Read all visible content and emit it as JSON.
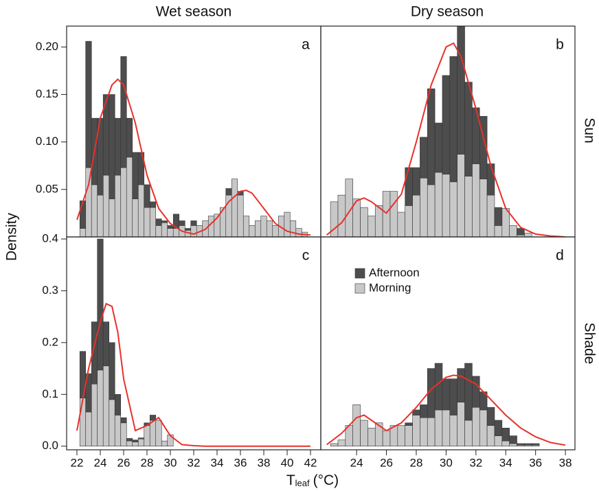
{
  "figure": {
    "column_titles": [
      "Wet season",
      "Dry season"
    ],
    "row_titles": [
      "Sun",
      "Shade"
    ],
    "ylabel": "Density",
    "xlabel": {
      "main": "T",
      "sub": "leaf",
      "unit": "(°C)"
    }
  },
  "chart_data": [
    {
      "type": "histogram",
      "panel_label": "a",
      "bins": [
        22.25,
        22.75,
        23.25,
        23.75,
        24.25,
        24.75,
        25.25,
        25.75,
        26.25,
        26.75,
        27.25,
        27.75,
        28.25,
        28.75,
        29.25,
        29.75,
        30.25,
        30.75,
        31.25,
        31.75,
        32.25,
        32.75,
        33.25,
        33.75,
        34.25,
        34.75,
        35.25,
        35.75,
        36.25,
        36.75,
        37.25,
        37.75,
        38.25,
        38.75,
        39.25,
        39.75,
        40.25,
        40.75,
        41.25,
        41.75
      ],
      "series": [
        {
          "name": "Morning",
          "color": "#c8c8c8",
          "values": [
            0.009,
            0.073,
            0.055,
            0.044,
            0.065,
            0.04,
            0.065,
            0.073,
            0.084,
            0.04,
            0.055,
            0.031,
            0.031,
            0.012,
            0.015,
            0.009,
            0.009,
            0.012,
            0.007,
            0.012,
            0.012,
            0.017,
            0.022,
            0.024,
            0.031,
            0.044,
            0.061,
            0.044,
            0.022,
            0.012,
            0.017,
            0.022,
            0.017,
            0.012,
            0.022,
            0.026,
            0.017,
            0.009,
            0.005
          ]
        },
        {
          "name": "Afternoon",
          "color": "#4d4d4d",
          "values": [
            0.029,
            0.133,
            0.07,
            0.081,
            0.085,
            0.11,
            0.06,
            0.117,
            0.041,
            0.049,
            0.034,
            0.024,
            0.006,
            0.007,
            0.002,
            0.003,
            0.015,
            0.005,
            0.002,
            0.005,
            0,
            0,
            0,
            0,
            0,
            0.007,
            0,
            0.004,
            0,
            0,
            0,
            0,
            0,
            0,
            0,
            0,
            0,
            0,
            0
          ]
        }
      ],
      "density": {
        "color": "#e8302a",
        "x": [
          22,
          23,
          24,
          25,
          25.5,
          26,
          27,
          28,
          29,
          30,
          31,
          32,
          33,
          34,
          35,
          36,
          36.5,
          37,
          38,
          39,
          40,
          41,
          42
        ],
        "values": [
          0.018,
          0.055,
          0.125,
          0.16,
          0.166,
          0.16,
          0.12,
          0.065,
          0.03,
          0.014,
          0.006,
          0.003,
          0.008,
          0.02,
          0.037,
          0.048,
          0.049,
          0.046,
          0.03,
          0.014,
          0.006,
          0.003,
          0.002
        ]
      },
      "xlim": [
        21.12,
        42.88
      ],
      "ylim": [
        0,
        0.222
      ],
      "yticks": [
        {
          "value": 0.05,
          "label": "0.05"
        },
        {
          "value": 0.1,
          "label": "0.10"
        },
        {
          "value": 0.15,
          "label": "0.15"
        },
        {
          "value": 0.2,
          "label": "0.20"
        }
      ]
    },
    {
      "type": "histogram",
      "panel_label": "b",
      "bins": [
        22.25,
        22.75,
        23.25,
        23.75,
        24.25,
        24.75,
        25.25,
        25.75,
        26.25,
        26.75,
        27.25,
        27.75,
        28.25,
        28.75,
        29.25,
        29.75,
        30.25,
        30.75,
        31.25,
        31.75,
        32.25,
        32.75,
        33.25,
        33.75,
        34.25,
        34.75,
        35.25,
        35.75
      ],
      "series": [
        {
          "name": "Morning",
          "color": "#c8c8c8",
          "values": [
            0.037,
            0.044,
            0.061,
            0.04,
            0.031,
            0.022,
            0.033,
            0.048,
            0.048,
            0.026,
            0.033,
            0.044,
            0.062,
            0.055,
            0.068,
            0.066,
            0.058,
            0.087,
            0.064,
            0.077,
            0.061,
            0.044,
            0.012,
            0.03,
            0.012,
            0.002,
            0.004
          ]
        },
        {
          "name": "Afternoon",
          "color": "#4d4d4d",
          "values": [
            0,
            0,
            0,
            0,
            0,
            0,
            0,
            0,
            0,
            0,
            0.04,
            0.029,
            0.043,
            0.101,
            0.052,
            0.104,
            0.132,
            0.143,
            0.099,
            0.059,
            0.066,
            0.033,
            0.019,
            0,
            0,
            0.007,
            0
          ]
        }
      ],
      "density": {
        "color": "#e8302a",
        "x": [
          22,
          23,
          24,
          24.5,
          25,
          26,
          27,
          28,
          29,
          30,
          30.5,
          31,
          32,
          33,
          34,
          35,
          36,
          37,
          38
        ],
        "values": [
          0.002,
          0.015,
          0.038,
          0.041,
          0.037,
          0.025,
          0.045,
          0.1,
          0.16,
          0.2,
          0.204,
          0.19,
          0.135,
          0.075,
          0.03,
          0.01,
          0.003,
          0.001,
          0
        ]
      },
      "xlim": [
        21.6,
        38.64
      ],
      "ylim": [
        0,
        0.222
      ]
    },
    {
      "type": "histogram",
      "panel_label": "c",
      "bins": [
        22.25,
        22.75,
        23.25,
        23.75,
        24.25,
        24.75,
        25.25,
        25.75,
        26.25,
        26.75,
        27.25,
        27.75,
        28.25,
        28.75,
        29.25,
        29.75,
        30.25
      ],
      "series": [
        {
          "name": "Morning",
          "color": "#c8c8c8",
          "values": [
            0.093,
            0.066,
            0.12,
            0.147,
            0.155,
            0.09,
            0.06,
            0.045,
            0.01,
            0.008,
            0.014,
            0.04,
            0.05,
            0.05,
            0.01,
            0.022
          ]
        },
        {
          "name": "Afternoon",
          "color": "#4d4d4d",
          "values": [
            0.09,
            0.074,
            0.12,
            0.253,
            0.085,
            0.11,
            0.04,
            0.01,
            0.005,
            0.004,
            0.002,
            0.005,
            0.01,
            0,
            0,
            0
          ]
        }
      ],
      "density": {
        "color": "#e8302a",
        "x": [
          22,
          23,
          24,
          24.5,
          25,
          25.5,
          26,
          27,
          28,
          29,
          30,
          31,
          32,
          33,
          42
        ],
        "values": [
          0.03,
          0.15,
          0.24,
          0.275,
          0.27,
          0.22,
          0.13,
          0.03,
          0.04,
          0.055,
          0.02,
          0.003,
          0.001,
          0,
          0
        ]
      },
      "xlim": [
        21.12,
        42.88
      ],
      "ylim": [
        -0.007,
        0.404
      ],
      "xticks": [
        22,
        24,
        26,
        28,
        30,
        32,
        34,
        36,
        38,
        40,
        42
      ],
      "yticks": [
        {
          "value": 0,
          "label": "0.0"
        },
        {
          "value": 0.1,
          "label": "0.1"
        },
        {
          "value": 0.2,
          "label": "0.2"
        },
        {
          "value": 0.3,
          "label": "0.3"
        },
        {
          "value": 0.4,
          "label": "0.4"
        }
      ]
    },
    {
      "type": "histogram",
      "panel_label": "d",
      "legend": "upper-left",
      "bins": [
        22.25,
        22.75,
        23.25,
        23.75,
        24.25,
        24.75,
        25.25,
        25.75,
        26.25,
        26.75,
        27.25,
        27.75,
        28.25,
        28.75,
        29.25,
        29.75,
        30.25,
        30.75,
        31.25,
        31.75,
        32.25,
        32.75,
        33.25,
        33.75,
        34.25,
        34.75,
        35.25,
        35.75,
        36.25
      ],
      "series": [
        {
          "name": "Morning",
          "color": "#c8c8c8",
          "values": [
            0.005,
            0.012,
            0.04,
            0.08,
            0.05,
            0.035,
            0.045,
            0.03,
            0.04,
            0.04,
            0.04,
            0.06,
            0.055,
            0.055,
            0.07,
            0.07,
            0.06,
            0.085,
            0.05,
            0.075,
            0.07,
            0.04,
            0.02,
            0.01,
            0.005,
            0.002,
            0.002,
            0.002
          ]
        },
        {
          "name": "Afternoon",
          "color": "#4d4d4d",
          "values": [
            0,
            0,
            0,
            0,
            0,
            0,
            0,
            0,
            0,
            0,
            0.005,
            0.01,
            0.025,
            0.095,
            0.09,
            0.06,
            0.07,
            0.065,
            0.11,
            0.06,
            0.035,
            0.035,
            0.03,
            0.025,
            0.015,
            0.003,
            0.003,
            0.003
          ]
        }
      ],
      "density": {
        "color": "#e8302a",
        "x": [
          22,
          23,
          24,
          24.5,
          25,
          26,
          27,
          28,
          29,
          30,
          30.5,
          31,
          32,
          33,
          34,
          35,
          36,
          37,
          38
        ],
        "values": [
          0.003,
          0.025,
          0.055,
          0.06,
          0.05,
          0.03,
          0.045,
          0.075,
          0.11,
          0.133,
          0.137,
          0.135,
          0.12,
          0.09,
          0.06,
          0.035,
          0.018,
          0.007,
          0.002
        ]
      },
      "xlim": [
        21.6,
        38.64
      ],
      "ylim": [
        -0.007,
        0.404
      ],
      "xticks": [
        24,
        26,
        28,
        30,
        32,
        34,
        36,
        38
      ]
    }
  ]
}
